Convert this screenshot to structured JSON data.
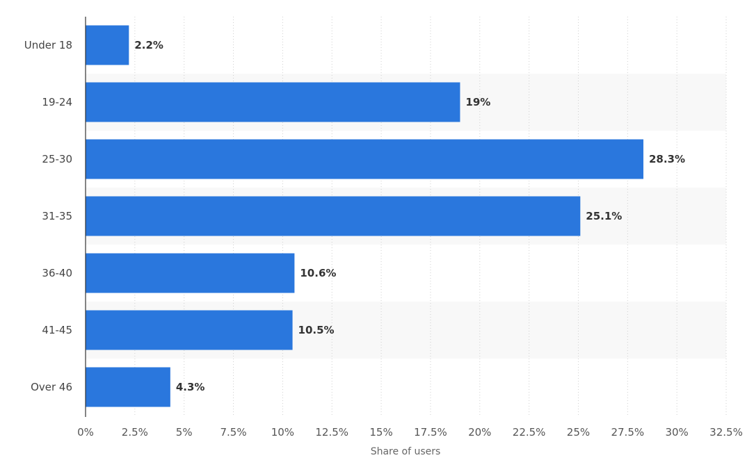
{
  "chart_data": {
    "type": "bar",
    "orientation": "horizontal",
    "categories": [
      "Under 18",
      "19-24",
      "25-30",
      "31-35",
      "36-40",
      "41-45",
      "Over 46"
    ],
    "values": [
      2.2,
      19,
      28.3,
      25.1,
      10.6,
      10.5,
      4.3
    ],
    "value_labels": [
      "2.2%",
      "19%",
      "28.3%",
      "25.1%",
      "10.6%",
      "10.5%",
      "4.3%"
    ],
    "x_ticks": [
      0,
      2.5,
      5,
      7.5,
      10,
      12.5,
      15,
      17.5,
      20,
      22.5,
      25,
      27.5,
      30,
      32.5
    ],
    "x_tick_labels": [
      "0%",
      "2.5%",
      "5%",
      "7.5%",
      "10%",
      "12.5%",
      "15%",
      "17.5%",
      "20%",
      "22.5%",
      "25%",
      "27.5%",
      "30%",
      "32.5%"
    ],
    "xlabel": "Share of users",
    "ylabel": "",
    "title": "",
    "xlim": [
      0,
      32.5
    ],
    "grid": true,
    "grid_style": "dotted-vertical",
    "legend": "none"
  },
  "colors": {
    "bar": "#2a77dd",
    "band": "#f8f8f8",
    "grid": "#cfcfcf",
    "axis": "#333333"
  }
}
